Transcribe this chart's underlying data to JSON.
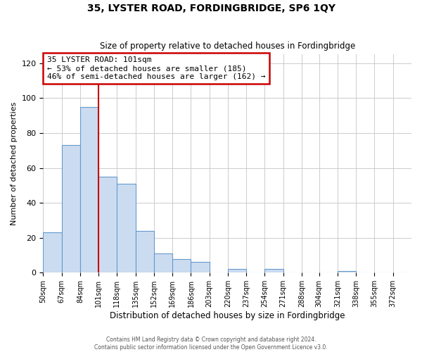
{
  "title": "35, LYSTER ROAD, FORDINGBRIDGE, SP6 1QY",
  "subtitle": "Size of property relative to detached houses in Fordingbridge",
  "xlabel": "Distribution of detached houses by size in Fordingbridge",
  "ylabel": "Number of detached properties",
  "footer_line1": "Contains HM Land Registry data © Crown copyright and database right 2024.",
  "footer_line2": "Contains public sector information licensed under the Open Government Licence v3.0.",
  "bin_edges": [
    50,
    67,
    84,
    101,
    118,
    135,
    152,
    169,
    186,
    203,
    220,
    237,
    254,
    271,
    288,
    304,
    321,
    338,
    355,
    372,
    389
  ],
  "bar_heights": [
    23,
    73,
    95,
    55,
    51,
    24,
    11,
    8,
    6,
    0,
    2,
    0,
    2,
    0,
    0,
    0,
    1,
    0,
    0,
    0
  ],
  "bar_facecolor": "#ccdcf0",
  "bar_edgecolor": "#6699cc",
  "vline_x": 101,
  "vline_color": "#cc0000",
  "annotation_line1": "35 LYSTER ROAD: 101sqm",
  "annotation_line2": "← 53% of detached houses are smaller (185)",
  "annotation_line3": "46% of semi-detached houses are larger (162) →",
  "annotation_boxcolor": "white",
  "annotation_boxedge": "#cc0000",
  "ylim": [
    0,
    125
  ],
  "yticks": [
    0,
    20,
    40,
    60,
    80,
    100,
    120
  ],
  "background_color": "white",
  "grid_color": "#cccccc"
}
